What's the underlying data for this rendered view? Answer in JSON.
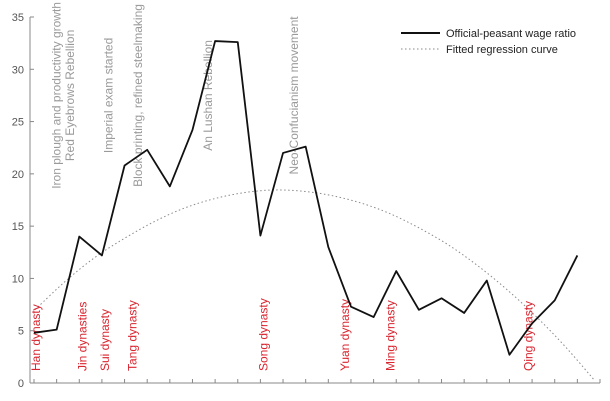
{
  "chart_data": {
    "type": "line",
    "title": "",
    "xlabel": "",
    "ylabel": "",
    "ylim": [
      0,
      35
    ],
    "yticks": [
      0,
      5,
      10,
      15,
      20,
      25,
      30,
      35
    ],
    "x_count": 26,
    "series": [
      {
        "name": "Official-peasant wage ratio",
        "style": "solid",
        "color": "#111111",
        "values": [
          4.8,
          5.1,
          14.0,
          12.2,
          20.8,
          22.3,
          18.8,
          24.2,
          32.7,
          32.6,
          14.1,
          22.0,
          22.6,
          13.0,
          7.3,
          6.3,
          10.7,
          7.0,
          8.1,
          6.7,
          9.8,
          2.7,
          5.7,
          7.9,
          12.2
        ]
      },
      {
        "name": "Fitted regression curve",
        "style": "dotted",
        "color": "#8a8a8a",
        "values": [
          7.0,
          9.7,
          12.0,
          13.8,
          15.4,
          16.7,
          17.6,
          18.2,
          18.5,
          18.4,
          18.0,
          17.3,
          16.3,
          14.9,
          13.3,
          11.3,
          9.0,
          6.4,
          3.5,
          0.2
        ]
      }
    ],
    "legend": {
      "position": "top-right"
    },
    "annotations": {
      "dynasties": [
        {
          "label": "Han dynasty",
          "x": 0.05
        },
        {
          "label": "Jin dynasties",
          "x": 2.1
        },
        {
          "label": "Sui dynasty",
          "x": 3.1
        },
        {
          "label": "Tang dynasty",
          "x": 4.3
        },
        {
          "label": "Song dynasty",
          "x": 10.1
        },
        {
          "label": "Yuan dynasty",
          "x": 13.7
        },
        {
          "label": "Ming dynasty",
          "x": 15.7
        },
        {
          "label": "Qing dynasty",
          "x": 21.8
        }
      ],
      "events": [
        {
          "label": "Iron plough and productivity growth",
          "x": 0.8
        },
        {
          "label": "Red Eyebrows Rebellion",
          "x": 1.4
        },
        {
          "label": "Imperial exam started",
          "x": 3.1
        },
        {
          "label": "Block printing, refined steelmaking",
          "x": 4.4
        },
        {
          "label": "An Lushan Rebellion",
          "x": 7.5
        },
        {
          "label": "Neo-Confucianism movement",
          "x": 11.3
        }
      ]
    },
    "colors": {
      "dynasty_label": "#d9252f",
      "event_label": "#9a9a9a",
      "axis": "#888888",
      "tick_text": "#555555"
    }
  }
}
